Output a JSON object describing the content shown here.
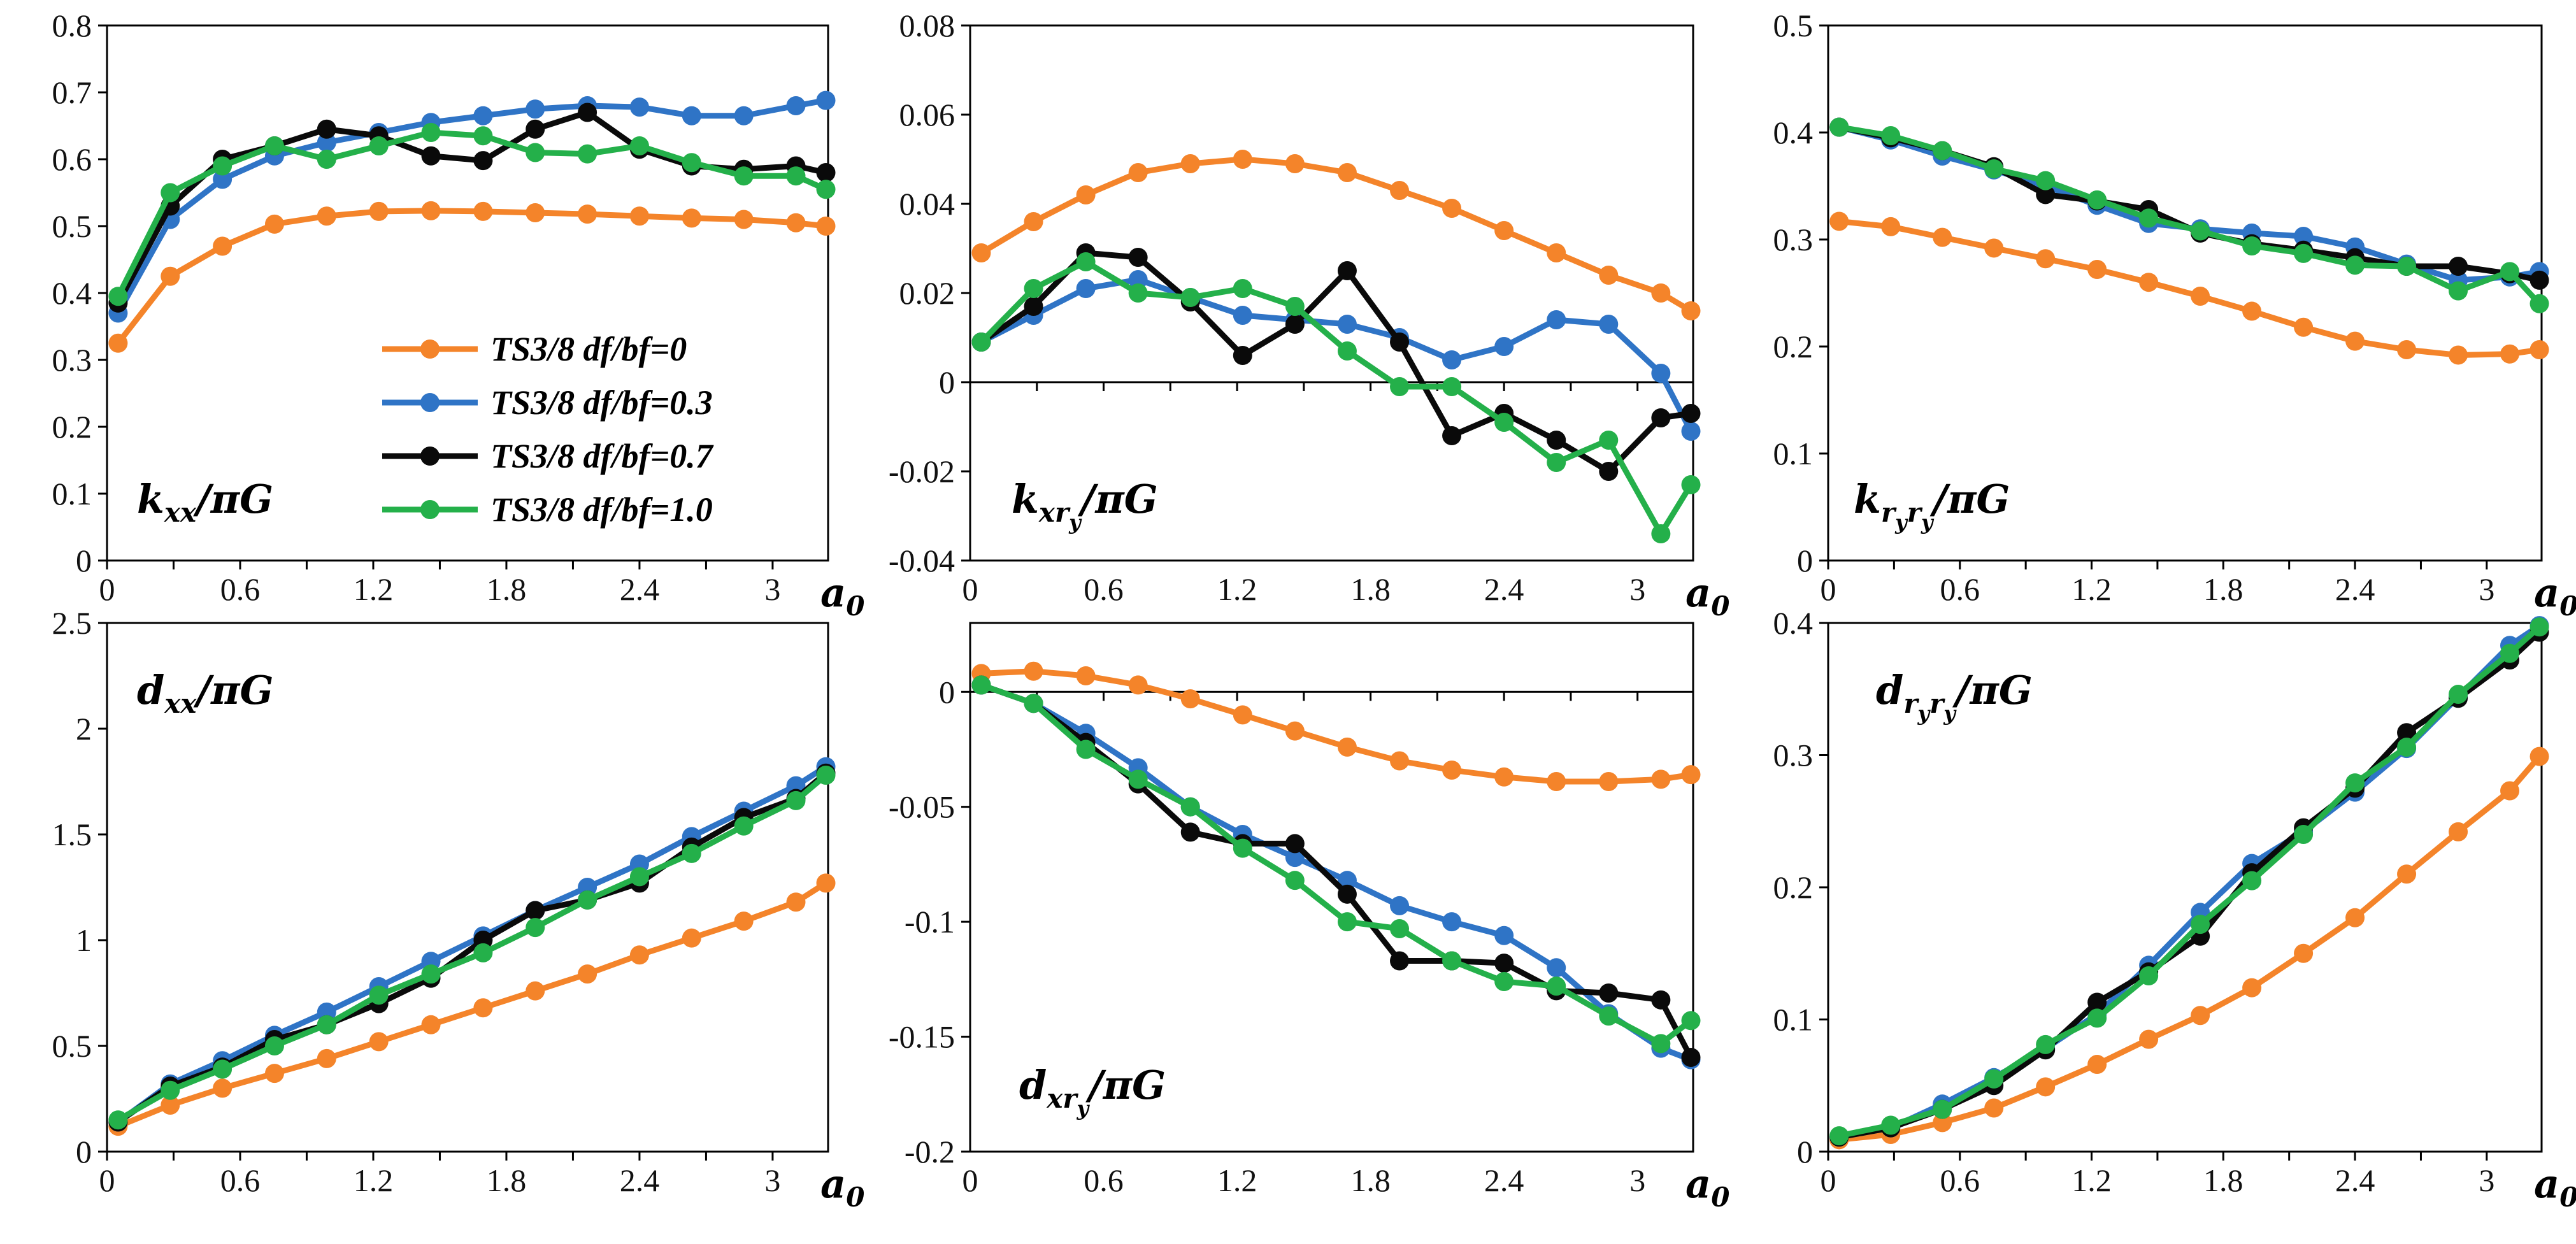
{
  "colors": {
    "series_df0": "#F4842A",
    "series_df03": "#2F74C6",
    "series_df07": "#0A0A0A",
    "series_df10": "#24B04A"
  },
  "legend": [
    "TS3/8 df/bf=0",
    "TS3/8 df/bf=0.3",
    "TS3/8 df/bf=0.7",
    "TS3/8 df/bf=1.0"
  ],
  "x_axis_label": "a",
  "x_axis_label_sub": "0",
  "chart_data": [
    {
      "id": "kxx",
      "type": "line",
      "title_main": "k",
      "title_sub": "xx",
      "title_rest": "/πG",
      "x_ticks": [
        "0",
        "0.6",
        "1.2",
        "1.8",
        "2.4",
        "3"
      ],
      "y_ticks": [
        "0",
        "0.1",
        "0.2",
        "0.3",
        "0.4",
        "0.5",
        "0.6",
        "0.7",
        "0.8"
      ],
      "xlim": [
        0,
        3.25
      ],
      "ylim": [
        0,
        0.8
      ],
      "x": [
        0.05,
        0.285,
        0.52,
        0.755,
        0.99,
        1.225,
        1.46,
        1.695,
        1.93,
        2.165,
        2.4,
        2.635,
        2.87,
        3.105,
        3.24
      ],
      "series": [
        {
          "name": "TS3/8 df/bf=0",
          "values": [
            0.325,
            0.425,
            0.47,
            0.503,
            0.515,
            0.522,
            0.523,
            0.522,
            0.52,
            0.518,
            0.515,
            0.512,
            0.51,
            0.505,
            0.5
          ]
        },
        {
          "name": "TS3/8 df/bf=0.3",
          "values": [
            0.37,
            0.51,
            0.57,
            0.605,
            0.625,
            0.64,
            0.655,
            0.665,
            0.675,
            0.68,
            0.678,
            0.665,
            0.665,
            0.68,
            0.688
          ]
        },
        {
          "name": "TS3/8 df/bf=0.7",
          "values": [
            0.385,
            0.53,
            0.6,
            0.62,
            0.645,
            0.635,
            0.605,
            0.598,
            0.645,
            0.67,
            0.615,
            0.59,
            0.585,
            0.59,
            0.58
          ]
        },
        {
          "name": "TS3/8 df/bf=1.0",
          "values": [
            0.395,
            0.55,
            0.59,
            0.62,
            0.6,
            0.62,
            0.64,
            0.635,
            0.61,
            0.608,
            0.62,
            0.595,
            0.575,
            0.575,
            0.555
          ]
        }
      ]
    },
    {
      "id": "kxry",
      "type": "line",
      "title_main": "k",
      "title_sub": "xr",
      "title_sub2": "y",
      "title_rest": "/πG",
      "x_ticks": [
        "0",
        "0.6",
        "1.2",
        "1.8",
        "2.4",
        "3"
      ],
      "y_ticks": [
        "-0.04",
        "-0.02",
        "0",
        "0.02",
        "0.04",
        "0.06",
        "0.08"
      ],
      "xlim": [
        0,
        3.25
      ],
      "ylim": [
        -0.04,
        0.08
      ],
      "x": [
        0.05,
        0.285,
        0.52,
        0.755,
        0.99,
        1.225,
        1.46,
        1.695,
        1.93,
        2.165,
        2.4,
        2.635,
        2.87,
        3.105,
        3.24
      ],
      "series": [
        {
          "name": "TS3/8 df/bf=0",
          "values": [
            0.029,
            0.036,
            0.042,
            0.047,
            0.049,
            0.05,
            0.049,
            0.047,
            0.043,
            0.039,
            0.034,
            0.029,
            0.024,
            0.02,
            0.016
          ]
        },
        {
          "name": "TS3/8 df/bf=0.3",
          "values": [
            0.009,
            0.015,
            0.021,
            0.023,
            0.019,
            0.015,
            0.014,
            0.013,
            0.01,
            0.005,
            0.008,
            0.014,
            0.013,
            0.002,
            -0.011
          ]
        },
        {
          "name": "TS3/8 df/bf=0.7",
          "values": [
            0.009,
            0.017,
            0.029,
            0.028,
            0.018,
            0.006,
            0.013,
            0.025,
            0.009,
            -0.012,
            -0.007,
            -0.013,
            -0.02,
            -0.008,
            -0.007
          ]
        },
        {
          "name": "TS3/8 df/bf=1.0",
          "values": [
            0.009,
            0.021,
            0.027,
            0.02,
            0.019,
            0.021,
            0.017,
            0.007,
            -0.001,
            -0.001,
            -0.009,
            -0.018,
            -0.013,
            -0.034,
            -0.023
          ]
        }
      ]
    },
    {
      "id": "kryry",
      "type": "line",
      "title_main": "k",
      "title_sub": "r",
      "title_sub2": "y",
      "title_sub3": "r",
      "title_sub4": "y",
      "title_rest": "/πG",
      "x_ticks": [
        "0",
        "0.6",
        "1.2",
        "1.8",
        "2.4",
        "3"
      ],
      "y_ticks": [
        "0",
        "0.1",
        "0.2",
        "0.3",
        "0.4",
        "0.5"
      ],
      "xlim": [
        0,
        3.25
      ],
      "ylim": [
        0,
        0.5
      ],
      "x": [
        0.05,
        0.285,
        0.52,
        0.755,
        0.99,
        1.225,
        1.46,
        1.695,
        1.93,
        2.165,
        2.4,
        2.635,
        2.87,
        3.105,
        3.24
      ],
      "series": [
        {
          "name": "TS3/8 df/bf=0",
          "values": [
            0.317,
            0.312,
            0.302,
            0.292,
            0.282,
            0.272,
            0.26,
            0.247,
            0.233,
            0.218,
            0.205,
            0.197,
            0.192,
            0.193,
            0.197
          ]
        },
        {
          "name": "TS3/8 df/bf=0.3",
          "values": [
            0.405,
            0.393,
            0.378,
            0.365,
            0.35,
            0.332,
            0.315,
            0.31,
            0.306,
            0.303,
            0.293,
            0.277,
            0.262,
            0.265,
            0.27
          ]
        },
        {
          "name": "TS3/8 df/bf=0.7",
          "values": [
            0.405,
            0.395,
            0.383,
            0.368,
            0.342,
            0.336,
            0.328,
            0.306,
            0.296,
            0.29,
            0.283,
            0.275,
            0.275,
            0.268,
            0.262
          ]
        },
        {
          "name": "TS3/8 df/bf=1.0",
          "values": [
            0.405,
            0.397,
            0.383,
            0.366,
            0.355,
            0.337,
            0.32,
            0.308,
            0.294,
            0.287,
            0.276,
            0.275,
            0.252,
            0.27,
            0.24
          ]
        }
      ]
    },
    {
      "id": "dxx",
      "type": "line",
      "title_main": "d",
      "title_sub": "xx",
      "title_rest": "/πG",
      "x_ticks": [
        "0",
        "0.6",
        "1.2",
        "1.8",
        "2.4",
        "3"
      ],
      "y_ticks": [
        "0",
        "0.5",
        "1",
        "1.5",
        "2",
        "2.5"
      ],
      "xlim": [
        0,
        3.25
      ],
      "ylim": [
        0,
        2.5
      ],
      "x": [
        0.05,
        0.285,
        0.52,
        0.755,
        0.99,
        1.225,
        1.46,
        1.695,
        1.93,
        2.165,
        2.4,
        2.635,
        2.87,
        3.105,
        3.24
      ],
      "series": [
        {
          "name": "TS3/8 df/bf=0",
          "values": [
            0.12,
            0.22,
            0.3,
            0.37,
            0.44,
            0.52,
            0.6,
            0.68,
            0.76,
            0.84,
            0.93,
            1.01,
            1.09,
            1.18,
            1.27
          ]
        },
        {
          "name": "TS3/8 df/bf=0.3",
          "values": [
            0.14,
            0.32,
            0.43,
            0.55,
            0.66,
            0.78,
            0.9,
            1.02,
            1.14,
            1.25,
            1.36,
            1.49,
            1.61,
            1.73,
            1.82
          ]
        },
        {
          "name": "TS3/8 df/bf=0.7",
          "values": [
            0.14,
            0.31,
            0.4,
            0.53,
            0.6,
            0.7,
            0.82,
            1.0,
            1.14,
            1.19,
            1.27,
            1.44,
            1.58,
            1.67,
            1.79
          ]
        },
        {
          "name": "TS3/8 df/bf=1.0",
          "values": [
            0.15,
            0.29,
            0.39,
            0.5,
            0.6,
            0.74,
            0.84,
            0.94,
            1.06,
            1.19,
            1.3,
            1.41,
            1.54,
            1.66,
            1.78
          ]
        }
      ]
    },
    {
      "id": "dxry",
      "type": "line",
      "title_main": "d",
      "title_sub": "xr",
      "title_sub2": "y",
      "title_rest": "/πG",
      "x_ticks": [
        "0",
        "0.6",
        "1.2",
        "1.8",
        "2.4",
        "3"
      ],
      "y_ticks": [
        "-0.2",
        "-0.15",
        "-0.1",
        "-0.05",
        "0"
      ],
      "xlim": [
        0,
        3.25
      ],
      "ylim": [
        -0.2,
        0.03
      ],
      "x": [
        0.05,
        0.285,
        0.52,
        0.755,
        0.99,
        1.225,
        1.46,
        1.695,
        1.93,
        2.165,
        2.4,
        2.635,
        2.87,
        3.105,
        3.24
      ],
      "series": [
        {
          "name": "TS3/8 df/bf=0",
          "values": [
            0.008,
            0.009,
            0.007,
            0.003,
            -0.003,
            -0.01,
            -0.017,
            -0.024,
            -0.03,
            -0.034,
            -0.037,
            -0.039,
            -0.039,
            -0.038,
            -0.036
          ]
        },
        {
          "name": "TS3/8 df/bf=0.3",
          "values": [
            0.003,
            -0.005,
            -0.018,
            -0.033,
            -0.05,
            -0.062,
            -0.072,
            -0.082,
            -0.093,
            -0.1,
            -0.106,
            -0.12,
            -0.14,
            -0.155,
            -0.16
          ]
        },
        {
          "name": "TS3/8 df/bf=0.7",
          "values": [
            0.003,
            -0.005,
            -0.022,
            -0.04,
            -0.061,
            -0.066,
            -0.066,
            -0.088,
            -0.117,
            -0.117,
            -0.118,
            -0.13,
            -0.131,
            -0.134,
            -0.159
          ]
        },
        {
          "name": "TS3/8 df/bf=1.0",
          "values": [
            0.003,
            -0.005,
            -0.025,
            -0.038,
            -0.05,
            -0.068,
            -0.082,
            -0.1,
            -0.103,
            -0.117,
            -0.126,
            -0.128,
            -0.141,
            -0.153,
            -0.143
          ]
        }
      ]
    },
    {
      "id": "dryry",
      "type": "line",
      "title_main": "d",
      "title_sub": "r",
      "title_sub2": "y",
      "title_sub3": "r",
      "title_sub4": "y",
      "title_rest": "/πG",
      "x_ticks": [
        "0",
        "0.6",
        "1.2",
        "1.8",
        "2.4",
        "3"
      ],
      "y_ticks": [
        "0",
        "0.1",
        "0.2",
        "0.3",
        "0.4"
      ],
      "xlim": [
        0,
        3.25
      ],
      "ylim": [
        0,
        0.4
      ],
      "x": [
        0.05,
        0.285,
        0.52,
        0.755,
        0.99,
        1.225,
        1.46,
        1.695,
        1.93,
        2.165,
        2.4,
        2.635,
        2.87,
        3.105,
        3.24
      ],
      "series": [
        {
          "name": "TS3/8 df/bf=0",
          "values": [
            0.009,
            0.013,
            0.022,
            0.033,
            0.049,
            0.066,
            0.085,
            0.103,
            0.124,
            0.15,
            0.177,
            0.21,
            0.242,
            0.273,
            0.299
          ]
        },
        {
          "name": "TS3/8 df/bf=0.3",
          "values": [
            0.011,
            0.018,
            0.036,
            0.056,
            0.078,
            0.104,
            0.141,
            0.181,
            0.218,
            0.242,
            0.272,
            0.305,
            0.344,
            0.383,
            0.398
          ]
        },
        {
          "name": "TS3/8 df/bf=0.7",
          "values": [
            0.011,
            0.018,
            0.032,
            0.05,
            0.077,
            0.113,
            0.136,
            0.163,
            0.211,
            0.245,
            0.275,
            0.317,
            0.343,
            0.372,
            0.393
          ]
        },
        {
          "name": "TS3/8 df/bf=1.0",
          "values": [
            0.012,
            0.02,
            0.032,
            0.055,
            0.081,
            0.101,
            0.133,
            0.172,
            0.205,
            0.24,
            0.279,
            0.306,
            0.346,
            0.377,
            0.397
          ]
        }
      ]
    }
  ]
}
